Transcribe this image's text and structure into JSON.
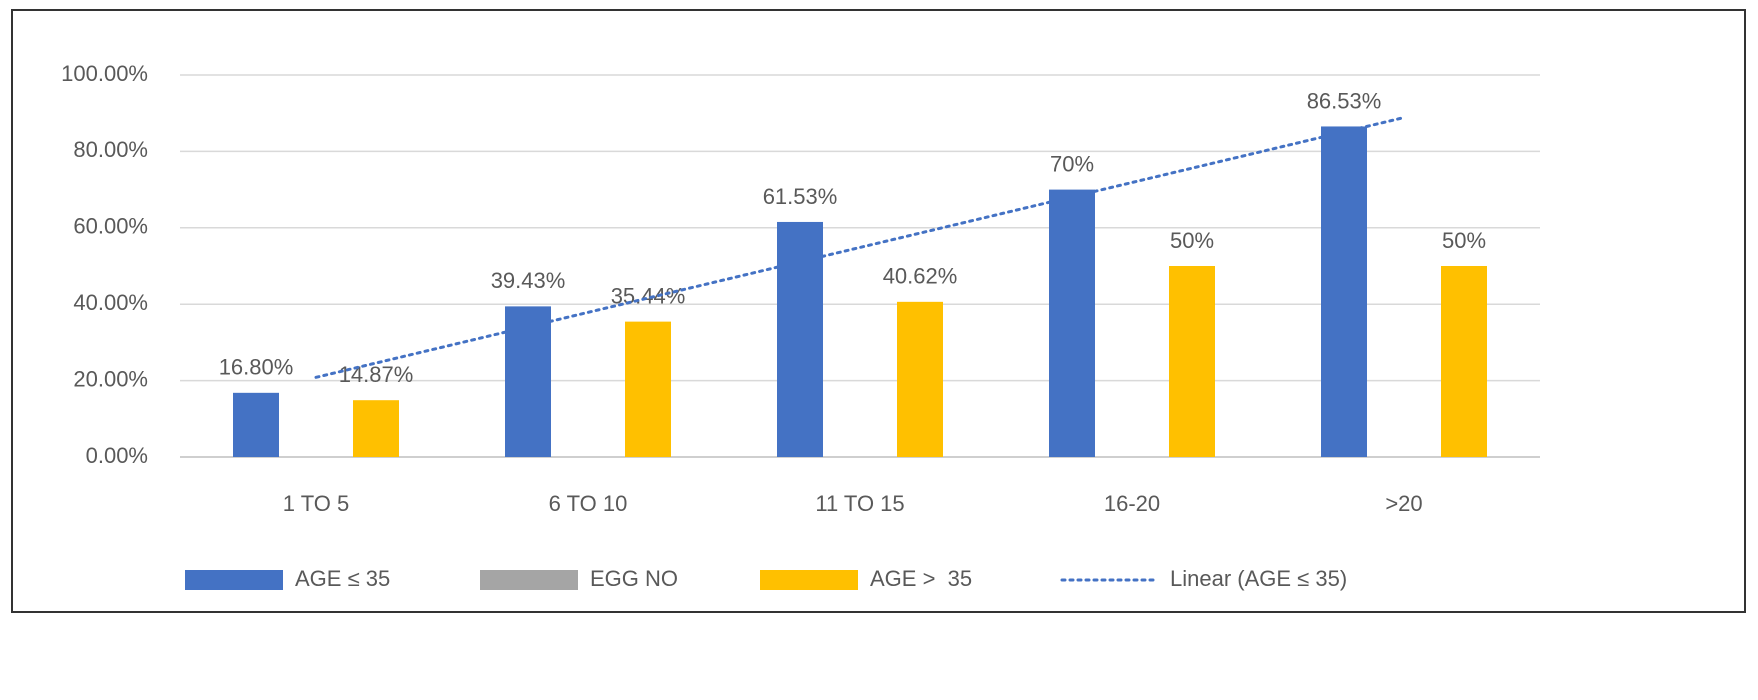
{
  "chart_data": {
    "type": "bar",
    "categories": [
      "1 TO 5",
      "6 TO 10",
      "11 TO 15",
      "16-20",
      ">20"
    ],
    "series": [
      {
        "name": "AGE ≤ 35",
        "color": "#4472c4",
        "values": [
          16.8,
          39.43,
          61.53,
          70,
          86.53
        ],
        "value_labels": [
          "16.80%",
          "39.43%",
          "61.53%",
          "70%",
          "86.53%"
        ]
      },
      {
        "name": "EGG NO",
        "color": "#a5a5a5",
        "values": [
          null,
          null,
          null,
          null,
          null
        ]
      },
      {
        "name": "AGE >  35",
        "color": "#ffc000",
        "values": [
          14.87,
          35.44,
          40.62,
          50,
          50
        ],
        "value_labels": [
          "14.87%",
          "35.44%",
          "40.62%",
          "50%",
          "50%"
        ]
      }
    ],
    "trendline": {
      "name": "Linear (AGE ≤ 35)",
      "color": "#4472c4",
      "style": "dotted",
      "values": [
        20.85,
        37.86,
        54.86,
        71.86,
        88.86
      ]
    },
    "ylim": [
      0,
      100
    ],
    "yticks": [
      {
        "value": 0,
        "label": "0.00%"
      },
      {
        "value": 20,
        "label": "20.00%"
      },
      {
        "value": 40,
        "label": "40.00%"
      },
      {
        "value": 60,
        "label": "60.00%"
      },
      {
        "value": 80,
        "label": "80.00%"
      },
      {
        "value": 100,
        "label": "100.00%"
      }
    ],
    "grid": true,
    "legend": "bottom"
  }
}
